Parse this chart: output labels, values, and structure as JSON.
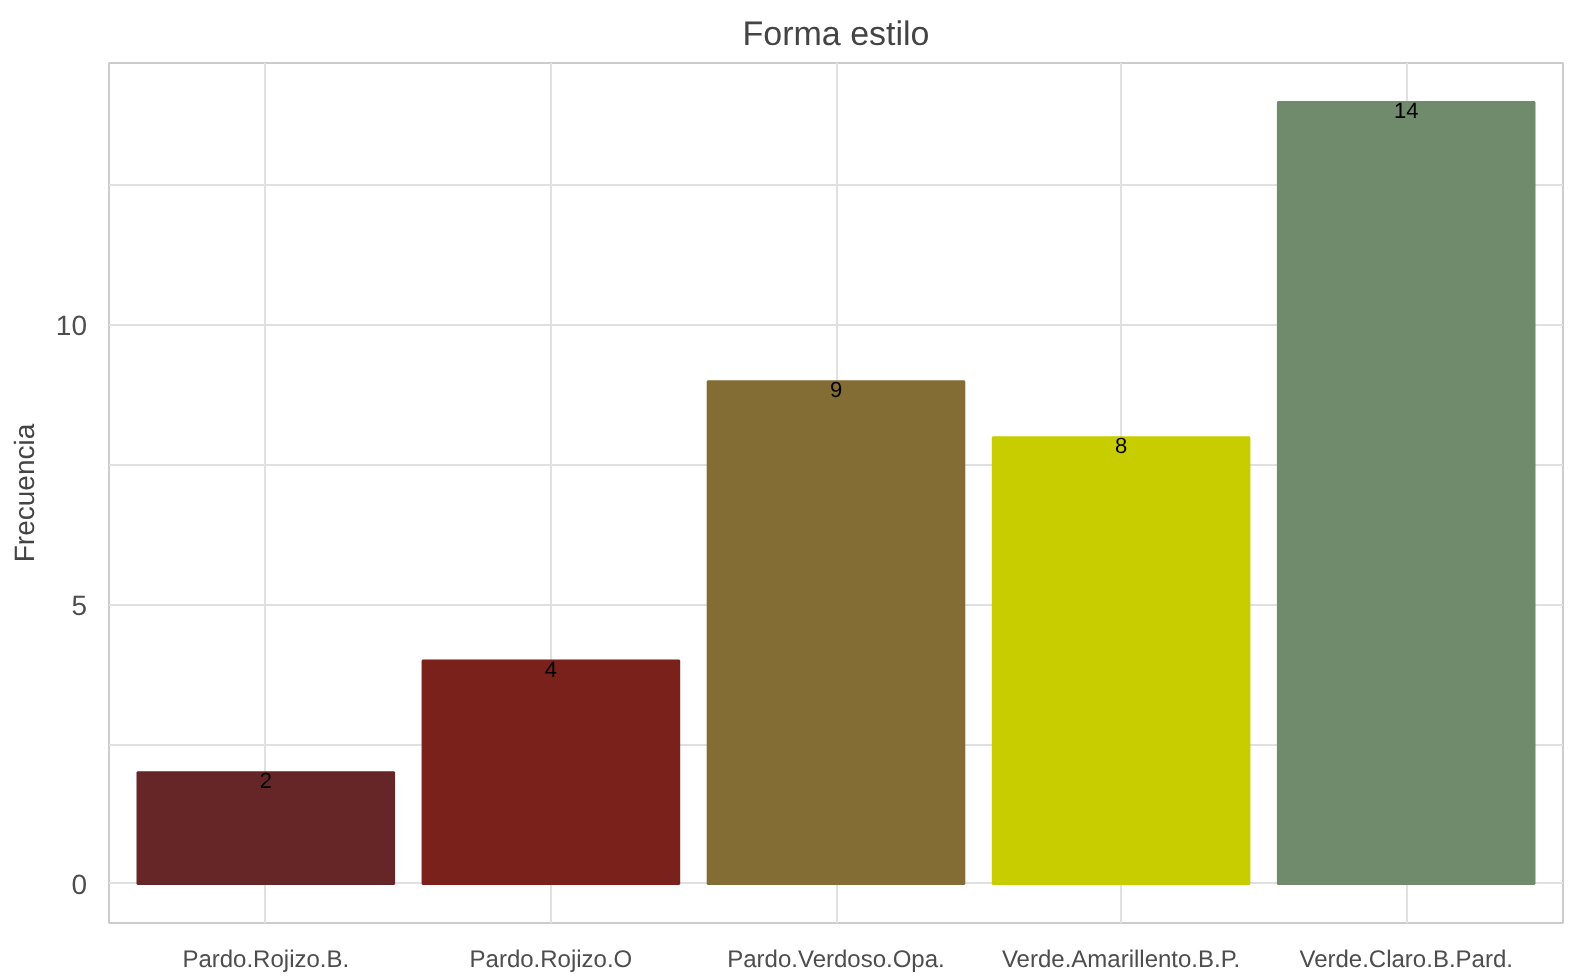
{
  "chart_data": {
    "type": "bar",
    "title": "Forma estilo",
    "ylabel": "Frecuencia",
    "categories": [
      "Pardo.Rojizo.B.",
      "Pardo.Rojizo.O",
      "Pardo.Verdoso.Opa.",
      "Verde.Amarillento.B.P.",
      "Verde.Claro.B.Pard."
    ],
    "values": [
      2,
      4,
      9,
      8,
      14
    ],
    "colors": [
      "#662526",
      "#7a211c",
      "#846d35",
      "#c8cd00",
      "#6f8b6b"
    ],
    "ylim": [
      -0.7,
      14.7
    ],
    "yticks": [
      0,
      {
        "value": 2.5,
        "label": null
      },
      5,
      {
        "value": 7.5,
        "label": null
      },
      10,
      {
        "value": 12.5,
        "label": null
      }
    ],
    "grid": true,
    "data_labels": true
  }
}
